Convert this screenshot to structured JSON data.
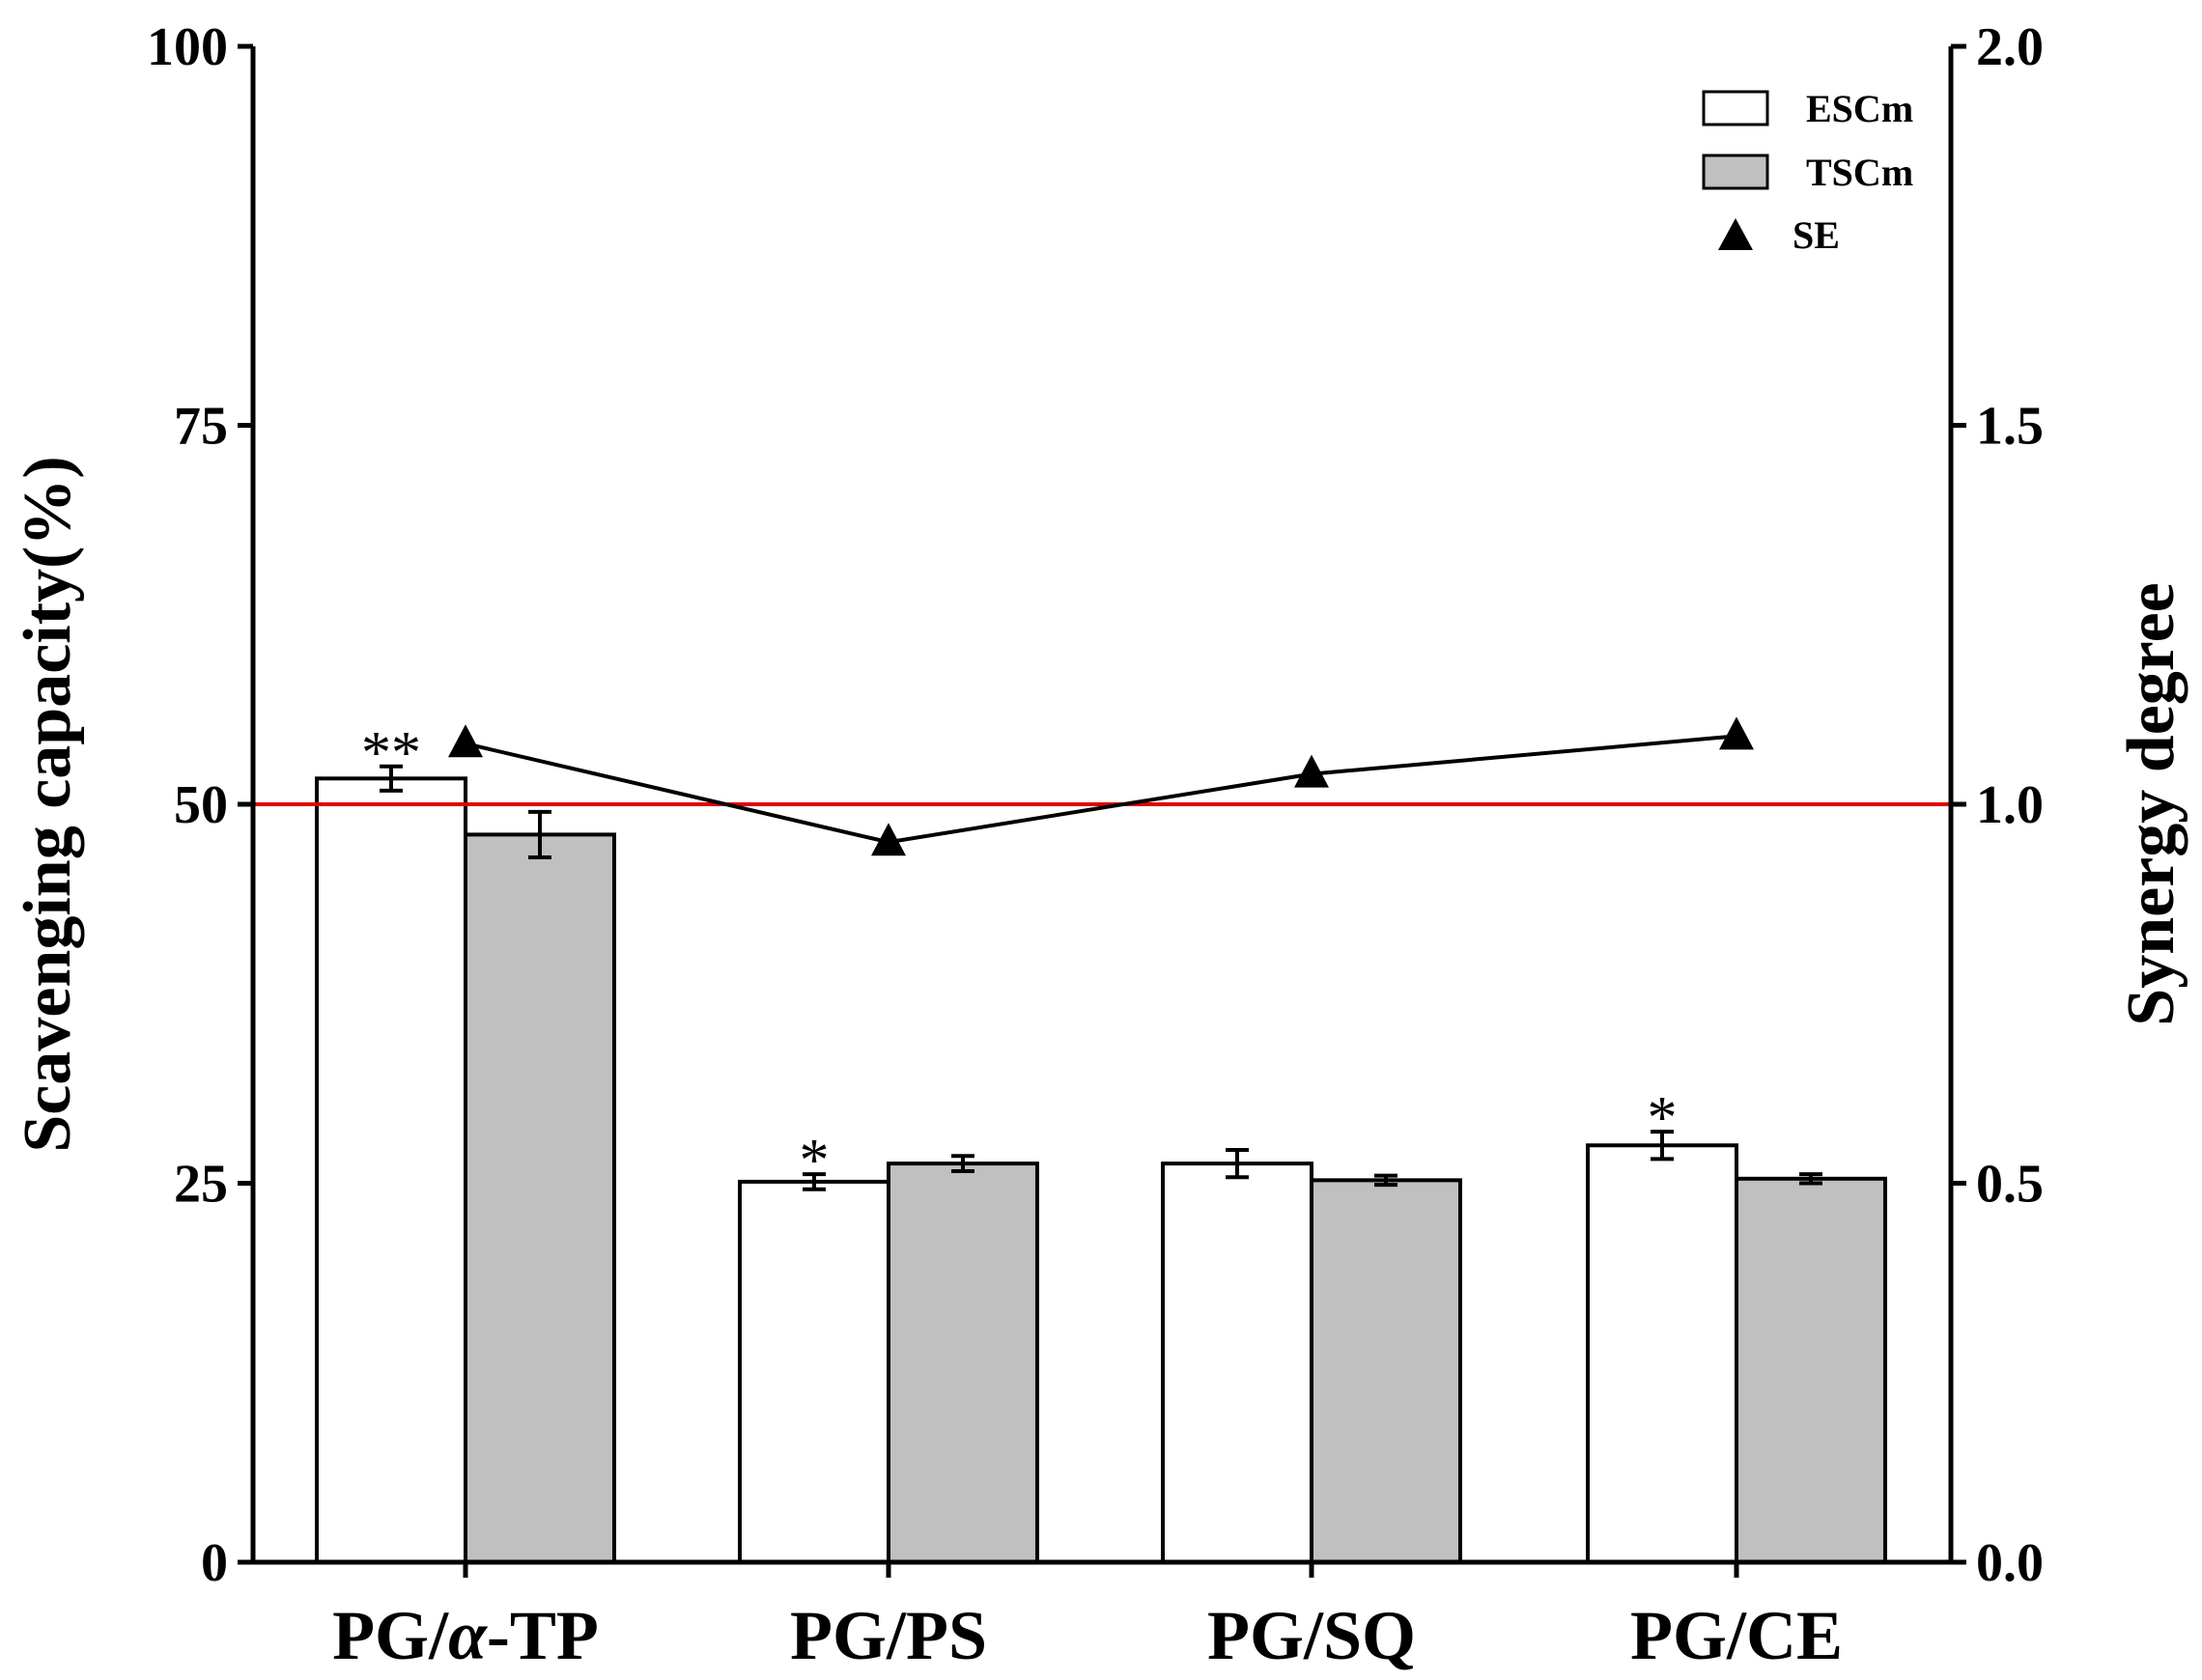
{
  "chart_data": {
    "type": "bar",
    "categories": [
      "PG/α-TP",
      "PG/PS",
      "PG/SQ",
      "PG/CE"
    ],
    "category_parts": [
      {
        "prefix": "PG/",
        "italic": "α",
        "suffix": "-TP"
      },
      {
        "prefix": "PG/PS",
        "italic": "",
        "suffix": ""
      },
      {
        "prefix": "PG/SQ",
        "italic": "",
        "suffix": ""
      },
      {
        "prefix": "PG/CE",
        "italic": "",
        "suffix": ""
      }
    ],
    "series": [
      {
        "name": "ESCm",
        "axis": "left",
        "fill": "#ffffff",
        "values": [
          51.7,
          25.1,
          26.3,
          27.5
        ],
        "errors": [
          0.8,
          0.5,
          0.9,
          0.9
        ],
        "significance": [
          "**",
          "*",
          "",
          "*"
        ]
      },
      {
        "name": "TSCm",
        "axis": "left",
        "fill": "#c0c0c0",
        "values": [
          48.0,
          26.3,
          25.2,
          25.3
        ],
        "errors": [
          1.5,
          0.5,
          0.3,
          0.3
        ],
        "significance": [
          "",
          "",
          "",
          ""
        ]
      }
    ],
    "line_series": {
      "name": "SE",
      "axis": "right",
      "marker": "triangle",
      "color": "#000000",
      "values": [
        1.08,
        0.95,
        1.04,
        1.09
      ]
    },
    "reference_line": {
      "value": 1.0,
      "axis": "right",
      "color": "#e00000"
    },
    "y_left": {
      "label": "Scavenging capacity(%)",
      "range": [
        0,
        100
      ],
      "ticks": [
        "0",
        "25",
        "50",
        "75",
        "100"
      ],
      "tick_values": [
        0,
        25,
        50,
        75,
        100
      ]
    },
    "y_right": {
      "label": "Synergy degree",
      "range": [
        0,
        2
      ],
      "ticks": [
        "0.0",
        "0.5",
        "1.0",
        "1.5",
        "2.0"
      ],
      "tick_values": [
        0,
        0.5,
        1,
        1.5,
        2
      ]
    },
    "legend": {
      "position": "top-right",
      "entries": [
        "ESCm",
        "TSCm",
        "SE"
      ]
    },
    "grid": false
  }
}
